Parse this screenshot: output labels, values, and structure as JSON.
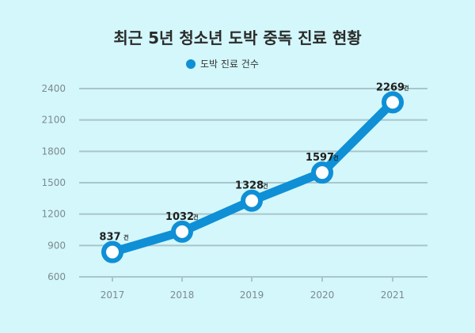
{
  "chart_data": {
    "type": "line",
    "title": "최근 5년 청소년 도박 중독 진료 현황",
    "categories": [
      "2017",
      "2018",
      "2019",
      "2020",
      "2021"
    ],
    "series": [
      {
        "name": "도박 진료 건수",
        "values": [
          837,
          1032,
          1328,
          1597,
          2269
        ]
      }
    ],
    "value_unit": "건",
    "yticks": [
      600,
      900,
      1200,
      1500,
      1800,
      2100,
      2400
    ],
    "ylim": [
      600,
      2400
    ],
    "xlabel": "",
    "ylabel": "",
    "legend": "top-center",
    "grid": true
  },
  "colors": {
    "background": "#d3f7fb",
    "series": "#0f8fd6",
    "marker_fill": "#ffffff",
    "grid": "#a9c6cb",
    "tick_text": "#7d8a90",
    "title": "#2b2b2b"
  }
}
